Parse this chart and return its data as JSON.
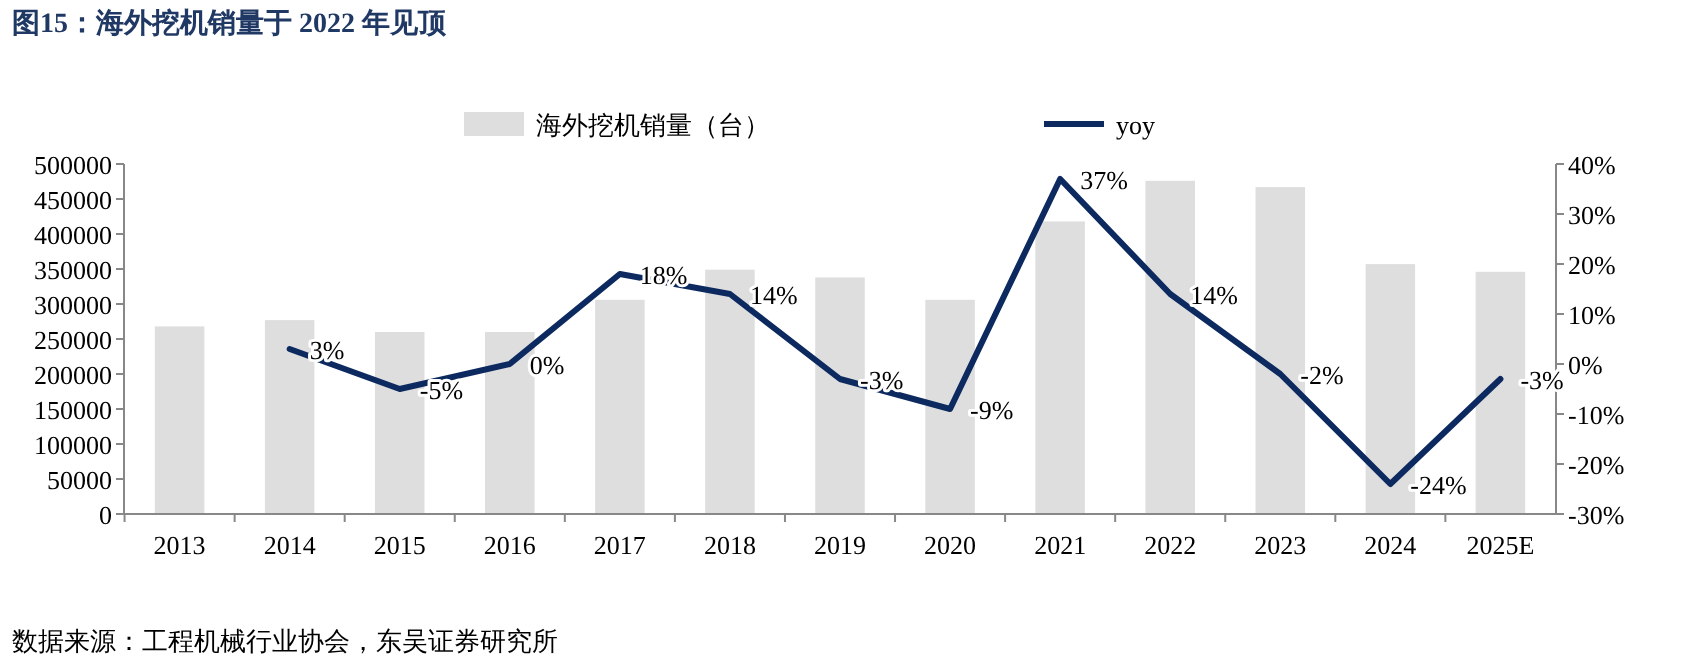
{
  "chart_data": {
    "type": "bar",
    "title": "图15：海外挖机销量于 2022 年见顶",
    "categories": [
      "2013",
      "2014",
      "2015",
      "2016",
      "2017",
      "2018",
      "2019",
      "2020",
      "2021",
      "2022",
      "2023",
      "2024",
      "2025E"
    ],
    "series": [
      {
        "name": "海外挖机销量（台）",
        "color": "#dedede",
        "values": [
          268000,
          277000,
          260000,
          260000,
          306000,
          349000,
          338000,
          306000,
          418000,
          476000,
          467000,
          357000,
          346000
        ]
      },
      {
        "name": "yoy",
        "type": "line",
        "axis": "y2",
        "color": "#0c2a5f",
        "values": [
          null,
          3,
          -5,
          0,
          18,
          14,
          -3,
          -9,
          37,
          14,
          -2,
          -24,
          -3
        ],
        "value_labels": [
          null,
          "3%",
          "-5%",
          "0%",
          "18%",
          "14%",
          "-3%",
          "-9%",
          "37%",
          "14%",
          "-2%",
          "-24%",
          "-3%"
        ]
      }
    ],
    "ylim": [
      0,
      500000
    ],
    "yticks": [
      0,
      50000,
      100000,
      150000,
      200000,
      250000,
      300000,
      350000,
      400000,
      450000,
      500000
    ],
    "y2lim": [
      -30,
      40
    ],
    "y2ticks": [
      {
        "value": -30,
        "label": "-30%"
      },
      {
        "value": -20,
        "label": "-20%"
      },
      {
        "value": -10,
        "label": "-10%"
      },
      {
        "value": 0,
        "label": "0%"
      },
      {
        "value": 10,
        "label": "10%"
      },
      {
        "value": 20,
        "label": "20%"
      },
      {
        "value": 30,
        "label": "30%"
      },
      {
        "value": 40,
        "label": "40%"
      }
    ],
    "legend": "top",
    "grid": false,
    "annotations": [
      "数据来源：工程机械行业协会，东吴证券研究所"
    ]
  }
}
